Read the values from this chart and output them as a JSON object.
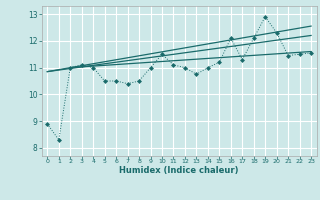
{
  "title": "",
  "xlabel": "Humidex (Indice chaleur)",
  "ylabel": "",
  "bg_color": "#cde8e8",
  "grid_color": "#ffffff",
  "line_color": "#1a6b6b",
  "xlim": [
    -0.5,
    23.5
  ],
  "ylim": [
    7.7,
    13.3
  ],
  "xticks": [
    0,
    1,
    2,
    3,
    4,
    5,
    6,
    7,
    8,
    9,
    10,
    11,
    12,
    13,
    14,
    15,
    16,
    17,
    18,
    19,
    20,
    21,
    22,
    23
  ],
  "yticks": [
    8,
    9,
    10,
    11,
    12,
    13
  ],
  "series1_x": [
    0,
    1,
    2,
    3,
    4,
    5,
    6,
    7,
    8,
    9,
    10,
    11,
    12,
    13,
    14,
    15,
    16,
    17,
    18,
    19,
    20,
    21,
    22,
    23
  ],
  "series1_y": [
    8.9,
    8.3,
    11.0,
    11.1,
    11.0,
    10.5,
    10.5,
    10.4,
    10.5,
    11.0,
    11.5,
    11.1,
    11.0,
    10.75,
    11.0,
    11.2,
    12.1,
    11.3,
    12.1,
    12.9,
    12.3,
    11.45,
    11.5,
    11.55
  ],
  "trend1_x": [
    0,
    23
  ],
  "trend1_y": [
    10.85,
    12.2
  ],
  "trend2_x": [
    0,
    23
  ],
  "trend2_y": [
    10.85,
    12.55
  ],
  "trend3_x": [
    2,
    23
  ],
  "trend3_y": [
    11.0,
    11.6
  ]
}
